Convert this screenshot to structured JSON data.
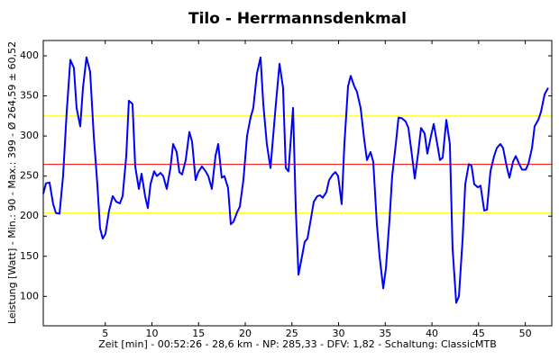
{
  "chart_data": {
    "type": "line",
    "title": "Tilo - Herrmannsdenkmal",
    "x_label": "Zeit [min] - 00:52:26 - 28,6 km - NP: 285,33 - DFV: 1,82 - Schaltung: ClassicMTB",
    "y_label": "Leistung [Watt] - Min.: 90 - Max.: 399 - Ø 264,59 ± 60,52",
    "color": "#0000ff",
    "x": [
      -1.64,
      -1.35,
      -0.97,
      -0.58,
      -0.29,
      0.1,
      0.48,
      0.87,
      1.26,
      1.64,
      1.93,
      2.32,
      2.61,
      2.99,
      3.38,
      3.77,
      4.15,
      4.44,
      4.73,
      5.02,
      5.41,
      5.8,
      6.18,
      6.57,
      6.86,
      7.25,
      7.53,
      7.92,
      8.21,
      8.6,
      8.89,
      9.27,
      9.56,
      9.85,
      10.24,
      10.53,
      10.92,
      11.21,
      11.59,
      11.98,
      12.27,
      12.65,
      12.94,
      13.23,
      13.62,
      14.01,
      14.3,
      14.68,
      14.97,
      15.36,
      15.75,
      16.04,
      16.42,
      16.81,
      17.1,
      17.48,
      17.77,
      18.16,
      18.45,
      18.74,
      19.13,
      19.42,
      19.8,
      20.19,
      20.57,
      20.86,
      21.25,
      21.64,
      21.93,
      22.31,
      22.7,
      22.99,
      23.28,
      23.67,
      24.05,
      24.34,
      24.63,
      25.12,
      25.41,
      25.7,
      26.08,
      26.37,
      26.66,
      27.05,
      27.34,
      27.72,
      28.01,
      28.3,
      28.69,
      28.98,
      29.37,
      29.66,
      29.95,
      30.33,
      30.62,
      31.01,
      31.3,
      31.68,
      31.97,
      32.36,
      32.75,
      33.04,
      33.42,
      33.71,
      34.1,
      34.39,
      34.78,
      35.07,
      35.45,
      35.74,
      36.13,
      36.42,
      36.8,
      37.19,
      37.48,
      37.87,
      38.16,
      38.54,
      38.83,
      39.22,
      39.51,
      39.9,
      40.19,
      40.57,
      40.86,
      41.15,
      41.54,
      41.92,
      42.21,
      42.6,
      42.89,
      43.28,
      43.57,
      43.95,
      44.24,
      44.53,
      44.92,
      45.21,
      45.6,
      45.89,
      46.27,
      46.66,
      46.95,
      47.33,
      47.62,
      48.01,
      48.3,
      48.69,
      48.98,
      49.36,
      49.65,
      50.04,
      50.33,
      50.72,
      51.0,
      51.39,
      51.68,
      52.07,
      52.45
    ],
    "values": [
      228,
      241,
      242,
      215,
      204,
      203,
      250,
      330,
      395,
      385,
      335,
      312,
      360,
      398,
      380,
      300,
      240,
      185,
      172,
      178,
      207,
      225,
      218,
      216,
      225,
      275,
      344,
      340,
      262,
      234,
      253,
      225,
      210,
      240,
      256,
      250,
      254,
      250,
      234,
      260,
      290,
      280,
      255,
      252,
      270,
      305,
      293,
      245,
      255,
      262,
      256,
      250,
      234,
      275,
      290,
      248,
      250,
      235,
      190,
      193,
      205,
      212,
      245,
      300,
      323,
      335,
      378,
      398,
      340,
      290,
      260,
      300,
      340,
      390,
      360,
      260,
      256,
      335,
      210,
      127,
      150,
      168,
      172,
      198,
      218,
      225,
      226,
      223,
      230,
      245,
      252,
      255,
      250,
      215,
      290,
      362,
      375,
      362,
      355,
      335,
      295,
      270,
      280,
      268,
      190,
      150,
      110,
      135,
      195,
      250,
      290,
      323,
      322,
      318,
      310,
      275,
      247,
      280,
      310,
      303,
      278,
      300,
      315,
      290,
      270,
      273,
      320,
      290,
      160,
      92,
      100,
      170,
      240,
      265,
      263,
      240,
      236,
      238,
      207,
      208,
      256,
      275,
      285,
      290,
      285,
      262,
      248,
      268,
      275,
      265,
      258,
      258,
      265,
      285,
      312,
      320,
      330,
      352,
      360
    ],
    "xlim": [
      -1.64,
      52.84
    ],
    "ylim": [
      63.3,
      419.1
    ],
    "xticks": [
      5,
      10,
      15,
      20,
      25,
      30,
      35,
      40,
      45,
      50
    ],
    "yticks": [
      100,
      150,
      200,
      250,
      300,
      350,
      400
    ],
    "reference_lines": [
      {
        "value": 325.11,
        "color": "#ffff00"
      },
      {
        "value": 264.59,
        "color": "#ff0000"
      },
      {
        "value": 204.07,
        "color": "#ffff00"
      }
    ],
    "grid": false
  }
}
